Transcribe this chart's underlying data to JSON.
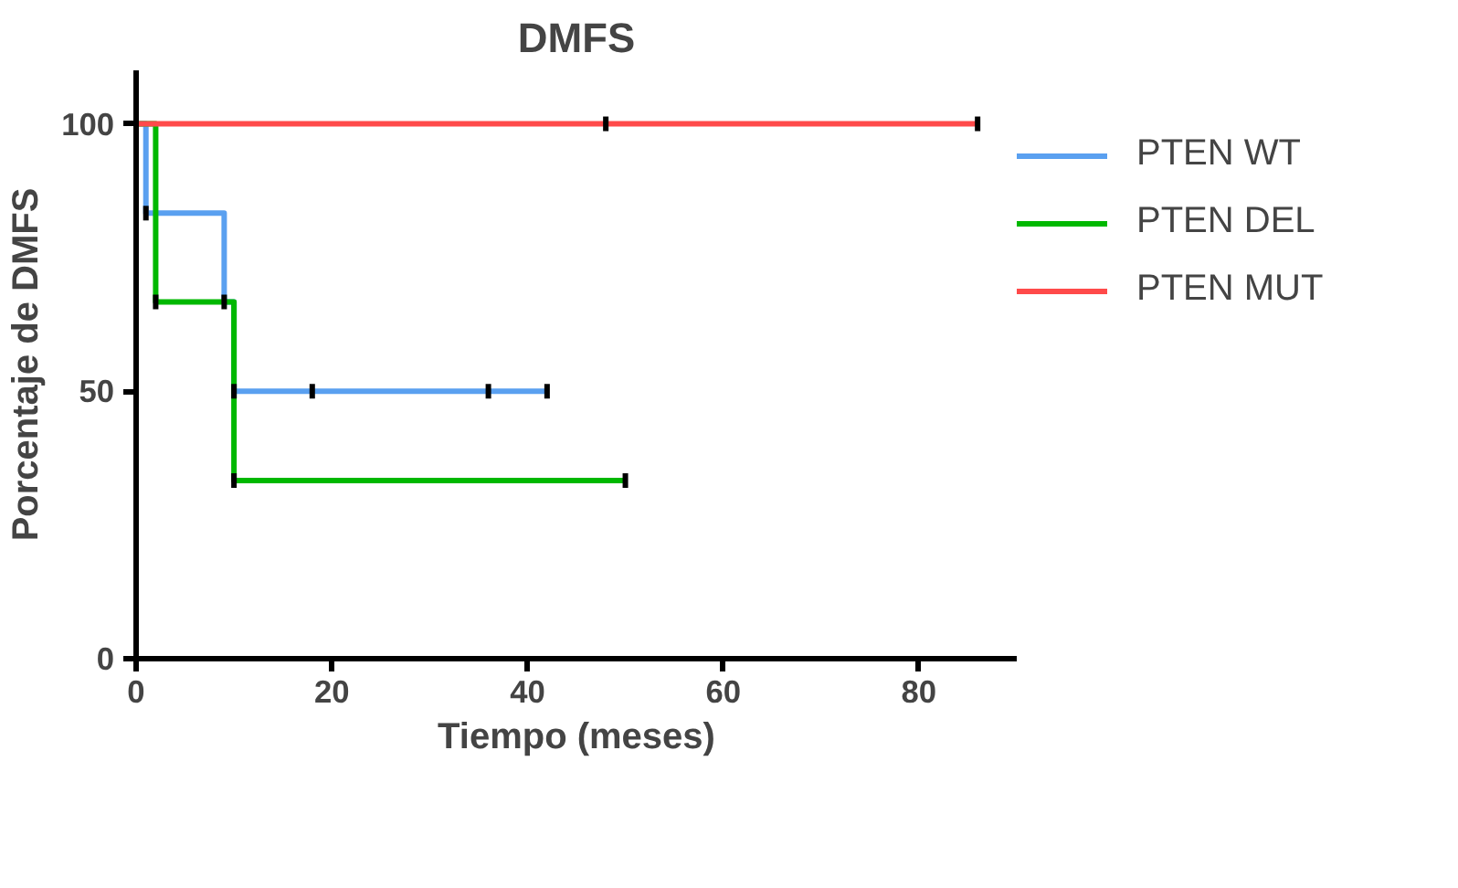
{
  "chart_data": {
    "type": "step",
    "title": "DMFS",
    "xlabel": "Tiempo (meses)",
    "ylabel": "Porcentaje de DMFS",
    "xlim": [
      0,
      90
    ],
    "ylim": [
      0,
      110
    ],
    "xticks": [
      0,
      20,
      40,
      60,
      80
    ],
    "yticks": [
      0,
      50,
      100
    ],
    "grid": false,
    "legend": "right",
    "series": [
      {
        "name": "PTEN WT",
        "color": "#5aa0f0",
        "x": [
          0,
          1,
          9,
          10,
          42
        ],
        "values": [
          100,
          83.3,
          66.7,
          50,
          50
        ]
      },
      {
        "name": "PTEN DEL",
        "color": "#00b800",
        "x": [
          0,
          2,
          10,
          50
        ],
        "values": [
          100,
          66.7,
          33.3,
          33.3
        ]
      },
      {
        "name": "PTEN MUT",
        "color": "#ff4a4a",
        "x": [
          0,
          86
        ],
        "values": [
          100,
          100
        ]
      },
      {
        "type": "scatter",
        "color": "#000000",
        "marker": "square",
        "x": [
          1,
          9,
          10,
          18,
          36,
          42,
          2,
          10,
          50,
          48,
          86
        ],
        "values": [
          83.3,
          66.7,
          50,
          50,
          50,
          50,
          66.7,
          33.3,
          33.3,
          100,
          100
        ]
      }
    ]
  }
}
